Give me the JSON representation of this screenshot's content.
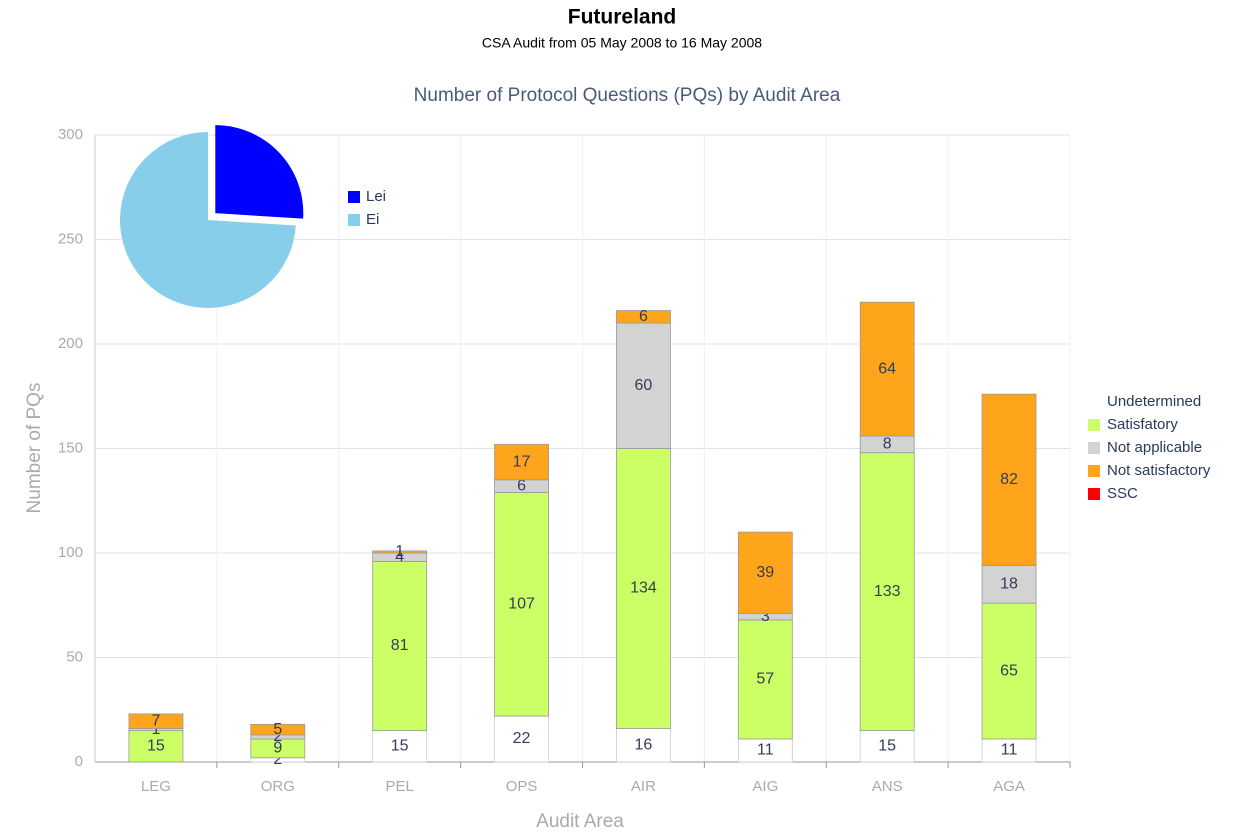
{
  "header": {
    "title": "Futureland",
    "subtitle": "CSA Audit from 05 May 2008 to 16 May 2008"
  },
  "chart_data": [
    {
      "type": "bar",
      "stacked": true,
      "title": "Number of Protocol Questions (PQs) by Audit Area",
      "x_label": "Audit Area",
      "y_label": "Number of PQs",
      "categories": [
        "LEG",
        "ORG",
        "PEL",
        "OPS",
        "AIR",
        "AIG",
        "ANS",
        "AGA"
      ],
      "series": [
        {
          "name": "Undetermined",
          "color": "#ffffff",
          "values": [
            0,
            2,
            15,
            22,
            16,
            11,
            15,
            11
          ]
        },
        {
          "name": "Satisfatory",
          "color": "#ccff66",
          "values": [
            15,
            9,
            81,
            107,
            134,
            57,
            133,
            65
          ]
        },
        {
          "name": "Not applicable",
          "color": "#d3d3d3",
          "values": [
            1,
            2,
            4,
            6,
            60,
            3,
            8,
            18
          ]
        },
        {
          "name": "Not satisfactory",
          "color": "#ffa51c",
          "values": [
            7,
            5,
            1,
            17,
            6,
            39,
            64,
            82
          ]
        },
        {
          "name": "SSC",
          "color": "#ff0000",
          "values": [
            0,
            0,
            0,
            0,
            0,
            0,
            0,
            0
          ]
        }
      ],
      "ylim": [
        0,
        300
      ],
      "yticks": [
        0,
        50,
        100,
        150,
        200,
        250,
        300
      ],
      "grid": true,
      "legend": "right"
    },
    {
      "type": "pie",
      "categories": [
        "Lei",
        "Ei"
      ],
      "values": [
        26,
        74
      ],
      "colors": [
        "#0000ff",
        "#87ceeb"
      ],
      "explode": [
        true,
        false
      ]
    }
  ]
}
